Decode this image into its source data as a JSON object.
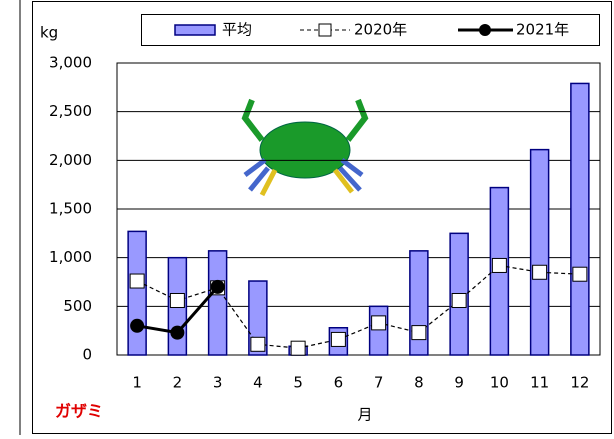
{
  "chart_data": {
    "type": "bar_line",
    "y_label": "kg",
    "x_label": "月",
    "annotation": "ガザミ",
    "categories": [
      "1",
      "2",
      "3",
      "4",
      "5",
      "6",
      "7",
      "8",
      "9",
      "10",
      "11",
      "12"
    ],
    "series": [
      {
        "name": "平均",
        "kind": "bar",
        "color": "#9999ff",
        "values": [
          1270,
          1000,
          1070,
          760,
          90,
          280,
          500,
          1070,
          1250,
          1720,
          2110,
          2790
        ]
      },
      {
        "name": "2020年",
        "kind": "line",
        "color": "#000000",
        "values": [
          760,
          560,
          690,
          110,
          70,
          160,
          330,
          230,
          560,
          920,
          850,
          830
        ]
      },
      {
        "name": "2021年",
        "kind": "line",
        "color": "#000000",
        "values": [
          300,
          230,
          700,
          null,
          null,
          null,
          null,
          null,
          null,
          null,
          null,
          null
        ]
      }
    ],
    "ylim": [
      0,
      3000
    ],
    "yticks": [
      0,
      500,
      {
        "value": 1000,
        "label": "1,000"
      },
      {
        "value": 1500,
        "label": "1,500"
      },
      {
        "value": 2000,
        "label": "2,000"
      },
      {
        "value": 2500,
        "label": "2,500"
      },
      {
        "value": 3000,
        "label": "3,000"
      }
    ],
    "grid": true
  }
}
